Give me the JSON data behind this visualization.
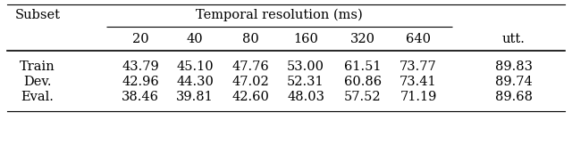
{
  "title": "Temporal resolution (ms)",
  "col_header_top": "Subset",
  "col_headers": [
    "20",
    "40",
    "80",
    "160",
    "320",
    "640",
    "utt."
  ],
  "rows": [
    {
      "label": "Train",
      "values": [
        "43.79",
        "45.10",
        "47.76",
        "53.00",
        "61.51",
        "73.77",
        "89.83"
      ]
    },
    {
      "label": "Dev.",
      "values": [
        "42.96",
        "44.30",
        "47.02",
        "52.31",
        "60.86",
        "73.41",
        "89.74"
      ]
    },
    {
      "label": "Eval.",
      "values": [
        "38.46",
        "39.81",
        "42.60",
        "48.03",
        "57.52",
        "71.19",
        "89.68"
      ]
    }
  ],
  "bg_color": "#ffffff",
  "text_color": "#000000",
  "fontsize": 10.5
}
